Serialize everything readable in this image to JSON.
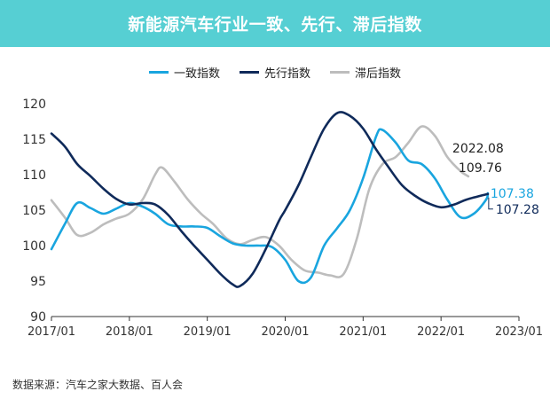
{
  "title": "新能源汽车行业一致、先行、滞后指数",
  "source": "数据来源：汽车之家大数据、百人会",
  "colors": {
    "title_bg": "#56cfd3",
    "coincident": "#19a5df",
    "leading": "#0f2a5a",
    "lagging": "#bdbdbd",
    "axis": "#333333"
  },
  "chart_data": {
    "type": "line",
    "title": "新能源汽车行业一致、先行、滞后指数",
    "xlabel": "",
    "ylabel": "",
    "ylim": [
      90,
      120
    ],
    "yticks": [
      90,
      95,
      100,
      105,
      110,
      115,
      120
    ],
    "xlim": [
      2017.0,
      2023.0
    ],
    "xticks": [
      {
        "value": 2017.0,
        "label": "2017/01"
      },
      {
        "value": 2018.0,
        "label": "2018/01"
      },
      {
        "value": 2019.0,
        "label": "2019/01"
      },
      {
        "value": 2020.0,
        "label": "2020/01"
      },
      {
        "value": 2021.0,
        "label": "2021/01"
      },
      {
        "value": 2022.0,
        "label": "2022/01"
      },
      {
        "value": 2023.0,
        "label": "2023/01"
      }
    ],
    "series": [
      {
        "name": "一致指数",
        "color": "#19a5df",
        "points": [
          [
            2017.0,
            99.5
          ],
          [
            2017.17,
            103.0
          ],
          [
            2017.33,
            106.0
          ],
          [
            2017.5,
            105.3
          ],
          [
            2017.67,
            104.5
          ],
          [
            2017.83,
            105.2
          ],
          [
            2018.0,
            106.0
          ],
          [
            2018.17,
            105.5
          ],
          [
            2018.33,
            104.5
          ],
          [
            2018.5,
            103.0
          ],
          [
            2018.67,
            102.7
          ],
          [
            2018.83,
            102.7
          ],
          [
            2019.0,
            102.5
          ],
          [
            2019.17,
            101.3
          ],
          [
            2019.33,
            100.3
          ],
          [
            2019.5,
            100.0
          ],
          [
            2019.67,
            100.0
          ],
          [
            2019.83,
            99.8
          ],
          [
            2020.0,
            98.0
          ],
          [
            2020.17,
            95.0
          ],
          [
            2020.33,
            95.5
          ],
          [
            2020.5,
            100.0
          ],
          [
            2020.67,
            102.5
          ],
          [
            2020.83,
            105.0
          ],
          [
            2021.0,
            109.5
          ],
          [
            2021.17,
            115.5
          ],
          [
            2021.25,
            116.3
          ],
          [
            2021.42,
            114.5
          ],
          [
            2021.58,
            112.0
          ],
          [
            2021.75,
            111.5
          ],
          [
            2021.92,
            109.5
          ],
          [
            2022.08,
            106.5
          ],
          [
            2022.25,
            104.0
          ],
          [
            2022.42,
            104.5
          ],
          [
            2022.58,
            106.5
          ],
          [
            2022.6,
            107.38
          ]
        ]
      },
      {
        "name": "先行指数",
        "color": "#0f2a5a",
        "points": [
          [
            2017.0,
            115.8
          ],
          [
            2017.17,
            114.0
          ],
          [
            2017.33,
            111.5
          ],
          [
            2017.5,
            109.8
          ],
          [
            2017.67,
            108.0
          ],
          [
            2017.83,
            106.6
          ],
          [
            2018.0,
            105.8
          ],
          [
            2018.17,
            106.0
          ],
          [
            2018.33,
            105.8
          ],
          [
            2018.5,
            104.3
          ],
          [
            2018.67,
            102.0
          ],
          [
            2018.83,
            100.0
          ],
          [
            2019.0,
            98.0
          ],
          [
            2019.17,
            96.0
          ],
          [
            2019.33,
            94.5
          ],
          [
            2019.42,
            94.3
          ],
          [
            2019.58,
            96.0
          ],
          [
            2019.75,
            99.5
          ],
          [
            2019.92,
            103.5
          ],
          [
            2020.0,
            105.0
          ],
          [
            2020.17,
            108.5
          ],
          [
            2020.33,
            112.5
          ],
          [
            2020.5,
            116.5
          ],
          [
            2020.67,
            118.7
          ],
          [
            2020.83,
            118.3
          ],
          [
            2021.0,
            116.5
          ],
          [
            2021.17,
            113.5
          ],
          [
            2021.33,
            111.0
          ],
          [
            2021.5,
            108.5
          ],
          [
            2021.67,
            107.0
          ],
          [
            2021.83,
            106.0
          ],
          [
            2022.0,
            105.4
          ],
          [
            2022.17,
            105.8
          ],
          [
            2022.33,
            106.5
          ],
          [
            2022.6,
            107.28
          ]
        ]
      },
      {
        "name": "滞后指数",
        "color": "#bdbdbd",
        "points": [
          [
            2017.0,
            106.4
          ],
          [
            2017.17,
            104.0
          ],
          [
            2017.33,
            101.5
          ],
          [
            2017.5,
            101.8
          ],
          [
            2017.67,
            103.0
          ],
          [
            2017.83,
            103.8
          ],
          [
            2018.0,
            104.5
          ],
          [
            2018.17,
            106.5
          ],
          [
            2018.33,
            110.0
          ],
          [
            2018.42,
            111.0
          ],
          [
            2018.58,
            109.0
          ],
          [
            2018.75,
            106.5
          ],
          [
            2018.92,
            104.5
          ],
          [
            2019.08,
            103.0
          ],
          [
            2019.25,
            101.0
          ],
          [
            2019.42,
            100.2
          ],
          [
            2019.58,
            100.8
          ],
          [
            2019.75,
            101.2
          ],
          [
            2019.92,
            100.0
          ],
          [
            2020.08,
            98.0
          ],
          [
            2020.25,
            96.5
          ],
          [
            2020.42,
            96.2
          ],
          [
            2020.58,
            95.8
          ],
          [
            2020.75,
            96.0
          ],
          [
            2020.92,
            101.0
          ],
          [
            2021.08,
            108.0
          ],
          [
            2021.25,
            111.5
          ],
          [
            2021.42,
            112.5
          ],
          [
            2021.58,
            114.5
          ],
          [
            2021.75,
            116.8
          ],
          [
            2021.92,
            115.5
          ],
          [
            2022.08,
            112.5
          ],
          [
            2022.25,
            110.5
          ],
          [
            2022.35,
            109.76
          ]
        ]
      }
    ],
    "annotations": [
      {
        "text": "2022.08",
        "color": "#222222"
      },
      {
        "text": "109.76",
        "color": "#222222"
      },
      {
        "text": "107.38",
        "color": "#19a5df"
      },
      {
        "text": "107.28",
        "color": "#0f2a5a"
      }
    ]
  }
}
